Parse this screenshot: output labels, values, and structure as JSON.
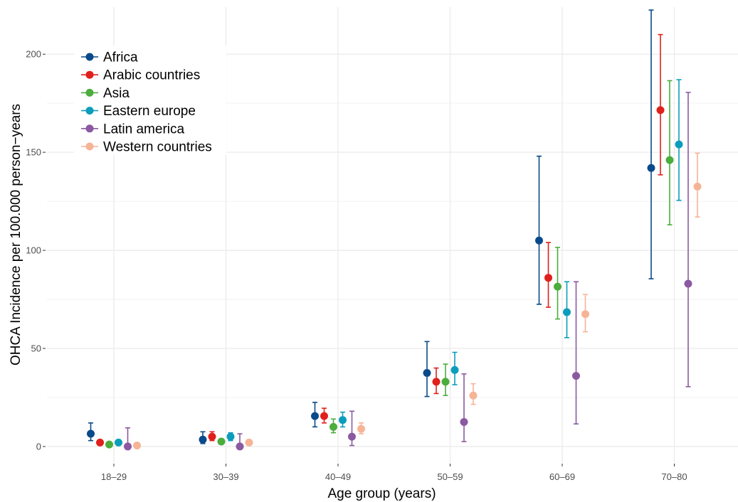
{
  "chart_data": {
    "type": "scatter",
    "subtype": "point-with-error-bars",
    "xlabel": "Age group (years)",
    "ylabel": "OHCA Incidence per 100.000 person−years",
    "categories": [
      "18–29",
      "30–39",
      "40–49",
      "50–59",
      "60–69",
      "70–80"
    ],
    "yticks": [
      "0",
      "50",
      "100",
      "150",
      "200"
    ],
    "ylim": [
      -8,
      224
    ],
    "grid": true,
    "legend_position": "top-left",
    "series": [
      {
        "name": "Africa",
        "color": "#0a4a8a",
        "values": [
          6.5,
          3.5,
          15.5,
          37.5,
          105,
          142
        ],
        "lower": [
          3,
          1.5,
          10,
          25.5,
          72.5,
          85.5
        ],
        "upper": [
          12,
          7.5,
          22.5,
          53.5,
          148,
          222.5
        ]
      },
      {
        "name": "Arabic countries",
        "color": "#e0201b",
        "values": [
          2,
          5,
          15.5,
          33,
          86,
          171.5
        ],
        "lower": [
          1,
          3,
          12,
          27,
          71,
          138.5
        ],
        "upper": [
          3,
          7.5,
          19.5,
          40,
          104,
          210
        ]
      },
      {
        "name": "Asia",
        "color": "#4aad3c",
        "values": [
          1,
          2.5,
          10,
          33,
          81.5,
          146
        ],
        "lower": [
          0.5,
          1.5,
          7,
          26,
          65,
          113
        ],
        "upper": [
          1.5,
          3.5,
          14,
          42,
          101.5,
          186.5
        ]
      },
      {
        "name": "Eastern europe",
        "color": "#0c9dbb",
        "values": [
          2,
          5,
          13.5,
          39,
          68.5,
          154
        ],
        "lower": [
          1,
          3,
          10,
          31.5,
          55.5,
          125.5
        ],
        "upper": [
          3,
          7,
          17.5,
          48,
          84,
          187
        ]
      },
      {
        "name": "Latin america",
        "color": "#8b59a1",
        "values": [
          0,
          0,
          5,
          12.5,
          36,
          83
        ],
        "lower": [
          0,
          0,
          0.5,
          2.5,
          11.5,
          30.5
        ],
        "upper": [
          9.5,
          6.5,
          18,
          37,
          84,
          180.5
        ]
      },
      {
        "name": "Western countries",
        "color": "#f6b496",
        "values": [
          0.5,
          2,
          9,
          26,
          67.5,
          132.5
        ],
        "lower": [
          0.5,
          1.5,
          6.5,
          21.5,
          58.5,
          117
        ],
        "upper": [
          1.5,
          3,
          12,
          32,
          77.5,
          149.5
        ]
      }
    ]
  }
}
